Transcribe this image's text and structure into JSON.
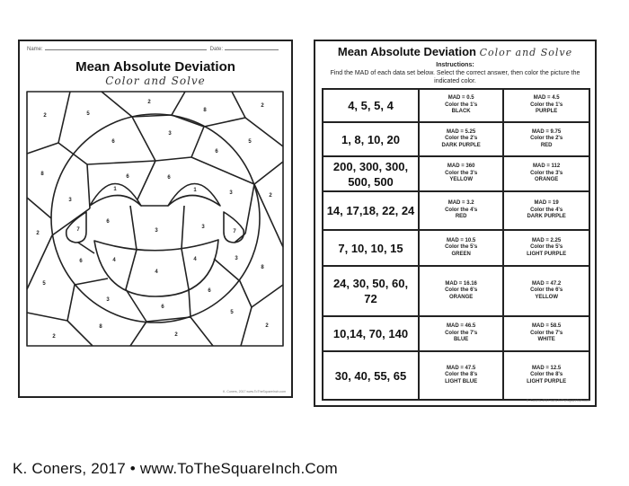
{
  "left_page": {
    "name_label": "Name:",
    "date_label": "Date:",
    "title": "Mean Absolute Deviation",
    "subtitle": "Color and Solve",
    "region_numbers": [
      "2",
      "5",
      "2",
      "8",
      "2",
      "3",
      "6",
      "5",
      "6",
      "8",
      "6",
      "6",
      "1",
      "1",
      "3",
      "2",
      "3",
      "6",
      "7",
      "3",
      "3",
      "7",
      "2",
      "6",
      "4",
      "4",
      "3",
      "8",
      "4",
      "5",
      "6",
      "3",
      "6",
      "5",
      "8",
      "2",
      "2",
      "2"
    ],
    "footer": "K. Coners, 2017 www.ToTheSquareInch.com"
  },
  "right_page": {
    "title": "Mean Absolute Deviation",
    "subtitle": "Color and Solve",
    "instructions_heading": "Instructions:",
    "instructions": "Find the MAD of each data set below. Select the correct answer, then color the picture the indicated color.",
    "rows": [
      {
        "data": "4, 5, 5, 4",
        "a": [
          "MAD = 0.5",
          "Color the 1's",
          "BLACK"
        ],
        "b": [
          "MAD = 4.5",
          "Color the 1's",
          "PURPLE"
        ]
      },
      {
        "data": "1, 8, 10, 20",
        "a": [
          "MAD = 5.25",
          "Color the 2's",
          "DARK PURPLE"
        ],
        "b": [
          "MAD = 9.75",
          "Color the 2's",
          "RED"
        ]
      },
      {
        "data": "200, 300, 300, 500, 500",
        "a": [
          "MAD = 360",
          "Color the 3's",
          "YELLOW"
        ],
        "b": [
          "MAD = 112",
          "Color the 3's",
          "ORANGE"
        ]
      },
      {
        "data": "14, 17,18, 22, 24",
        "a": [
          "MAD = 3.2",
          "Color the 4's",
          "RED"
        ],
        "b": [
          "MAD = 19",
          "Color the 4's",
          "DARK PURPLE"
        ]
      },
      {
        "data": "7, 10, 10, 15",
        "a": [
          "MAD = 10.5",
          "Color the 5's",
          "GREEN"
        ],
        "b": [
          "MAD = 2.25",
          "Color the 5's",
          "LIGHT PURPLE"
        ]
      },
      {
        "data": "24, 30, 50, 60, 72",
        "a": [
          "MAD = 16.16",
          "Color the 6's",
          "ORANGE"
        ],
        "b": [
          "MAD = 47.2",
          "Color the 6's",
          "YELLOW"
        ]
      },
      {
        "data": "10,14, 70, 140",
        "a": [
          "MAD = 46.5",
          "Color the 7's",
          "BLUE"
        ],
        "b": [
          "MAD = 58.5",
          "Color the 7's",
          "WHITE"
        ]
      },
      {
        "data": "30, 40, 55, 65",
        "a": [
          "MAD = 47.5",
          "Color the 8's",
          "LIGHT BLUE"
        ],
        "b": [
          "MAD = 12.5",
          "Color the 8's",
          "LIGHT PURPLE"
        ]
      }
    ],
    "footer": "K. Coners, 2017 www.ToTheSquareInch.com"
  },
  "credit": "K. Coners, 2017 • www.ToTheSquareInch.Com"
}
